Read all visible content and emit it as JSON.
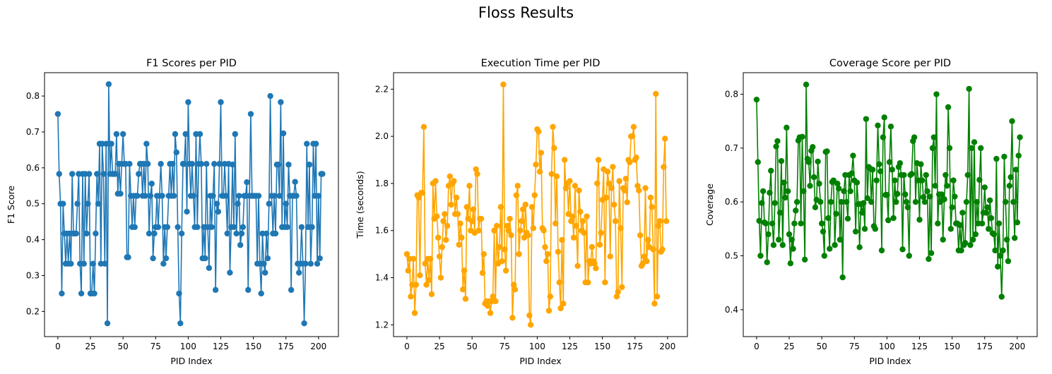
{
  "figure": {
    "suptitle": "Floss Results"
  },
  "chart_data": [
    {
      "type": "line",
      "title": "F1 Scores per PID",
      "xlabel": "PID Index",
      "ylabel": "F1 Score",
      "xlim": [
        -10.25,
        215.25
      ],
      "ylim": [
        0.13,
        0.865
      ],
      "xticks": [
        0,
        25,
        50,
        75,
        100,
        125,
        150,
        175,
        200
      ],
      "yticks": [
        0.2,
        0.3,
        0.4,
        0.5,
        0.6,
        0.7,
        0.8
      ],
      "ytick_labels": [
        "0.2",
        "0.3",
        "0.4",
        "0.5",
        "0.6",
        "0.7",
        "0.8"
      ],
      "color": "#1f77b4",
      "marker": "circle",
      "series": [
        {
          "values": [
            0.75,
            0.583,
            0.5,
            0.25,
            0.5,
            0.417,
            0.333,
            0.417,
            0.333,
            0.417,
            0.333,
            0.583,
            0.417,
            0.417,
            0.417,
            0.5,
            0.583,
            0.333,
            0.25,
            0.583,
            0.333,
            0.583,
            0.417,
            0.5,
            0.583,
            0.25,
            0.25,
            0.333,
            0.25,
            0.417,
            0.583,
            0.5,
            0.667,
            0.333,
            0.667,
            0.583,
            0.333,
            0.667,
            0.167,
            0.833,
            0.583,
            0.667,
            0.583,
            0.583,
            0.583,
            0.694,
            0.528,
            0.611,
            0.528,
            0.611,
            0.694,
            0.611,
            0.611,
            0.351,
            0.351,
            0.611,
            0.522,
            0.435,
            0.522,
            0.435,
            0.522,
            0.522,
            0.583,
            0.611,
            0.611,
            0.522,
            0.611,
            0.522,
            0.667,
            0.611,
            0.417,
            0.522,
            0.556,
            0.348,
            0.417,
            0.435,
            0.522,
            0.435,
            0.522,
            0.611,
            0.522,
            0.333,
            0.435,
            0.348,
            0.435,
            0.522,
            0.611,
            0.522,
            0.611,
            0.522,
            0.694,
            0.643,
            0.435,
            0.25,
            0.167,
            0.417,
            0.611,
            0.611,
            0.694,
            0.478,
            0.783,
            0.611,
            0.522,
            0.611,
            0.522,
            0.435,
            0.694,
            0.435,
            0.611,
            0.694,
            0.611,
            0.348,
            0.435,
            0.348,
            0.611,
            0.435,
            0.321,
            0.522,
            0.435,
            0.522,
            0.611,
            0.26,
            0.5,
            0.478,
            0.611,
            0.783,
            0.522,
            0.522,
            0.611,
            0.522,
            0.417,
            0.611,
            0.308,
            0.435,
            0.609,
            0.435,
            0.694,
            0.417,
            0.5,
            0.522,
            0.385,
            0.417,
            0.435,
            0.522,
            0.522,
            0.56,
            0.26,
            0.522,
            0.75,
            0.522,
            0.522,
            0.522,
            0.522,
            0.333,
            0.522,
            0.333,
            0.25,
            0.417,
            0.333,
            0.308,
            0.417,
            0.348,
            0.5,
            0.8,
            0.522,
            0.417,
            0.522,
            0.417,
            0.609,
            0.609,
            0.522,
            0.783,
            0.435,
            0.696,
            0.435,
            0.5,
            0.435,
            0.609,
            0.522,
            0.26,
            0.522,
            0.522,
            0.561,
            0.522,
            0.333,
            0.308,
            0.333,
            0.435,
            0.333,
            0.167,
            0.333,
            0.667,
            0.435,
            0.609,
            0.333,
            0.435,
            0.667,
            0.522,
            0.667,
            0.333,
            0.522,
            0.348,
            0.583,
            0.583
          ]
        }
      ]
    },
    {
      "type": "line",
      "title": "Execution Time per PID",
      "xlabel": "PID Index",
      "ylabel": "Time (seconds)",
      "xlim": [
        -10.25,
        215.25
      ],
      "ylim": [
        1.15,
        2.27
      ],
      "xticks": [
        0,
        25,
        50,
        75,
        100,
        125,
        150,
        175,
        200
      ],
      "yticks": [
        1.2,
        1.4,
        1.6,
        1.8,
        2.0,
        2.2
      ],
      "ytick_labels": [
        "1.2",
        "1.4",
        "1.6",
        "1.8",
        "2.0",
        "2.2"
      ],
      "color": "#ffa500",
      "marker": "circle",
      "series": [
        {
          "values": [
            1.5,
            1.43,
            1.48,
            1.32,
            1.37,
            1.48,
            1.25,
            1.37,
            1.75,
            1.74,
            1.41,
            1.76,
            1.76,
            2.04,
            1.46,
            1.37,
            1.48,
            1.39,
            1.48,
            1.33,
            1.8,
            1.65,
            1.81,
            1.66,
            1.57,
            1.49,
            1.4,
            1.53,
            1.64,
            1.67,
            1.56,
            1.62,
            1.79,
            1.83,
            1.71,
            1.8,
            1.81,
            1.67,
            1.74,
            1.67,
            1.54,
            1.63,
            1.57,
            1.35,
            1.43,
            1.31,
            1.7,
            1.65,
            1.79,
            1.6,
            1.64,
            1.69,
            1.59,
            1.86,
            1.84,
            1.6,
            1.65,
            1.65,
            1.42,
            1.5,
            1.29,
            1.3,
            1.28,
            1.3,
            1.25,
            1.3,
            1.32,
            1.6,
            1.3,
            1.62,
            1.46,
            1.53,
            1.7,
            1.47,
            2.22,
            1.52,
            1.43,
            1.62,
            1.6,
            1.65,
            1.58,
            1.23,
            1.37,
            1.35,
            1.75,
            1.79,
            1.5,
            1.6,
            1.64,
            1.69,
            1.57,
            1.71,
            1.59,
            1.58,
            1.24,
            1.2,
            1.7,
            1.61,
            1.75,
            1.88,
            2.03,
            2.02,
            1.85,
            1.93,
            1.61,
            1.6,
            1.53,
            1.47,
            1.5,
            1.26,
            1.32,
            1.84,
            2.04,
            1.95,
            1.63,
            1.83,
            1.51,
            1.38,
            1.27,
            1.56,
            1.29,
            1.9,
            1.78,
            1.8,
            1.67,
            1.81,
            1.64,
            1.66,
            1.57,
            1.79,
            1.62,
            1.45,
            1.77,
            1.68,
            1.6,
            1.64,
            1.59,
            1.38,
            1.66,
            1.38,
            1.47,
            1.46,
            1.53,
            1.47,
            1.46,
            1.44,
            1.8,
            1.9,
            1.54,
            1.59,
            1.73,
            1.86,
            1.38,
            1.74,
            1.85,
            1.8,
            1.49,
            1.78,
            1.87,
            1.71,
            1.64,
            1.32,
            1.34,
            1.81,
            1.61,
            1.36,
            1.78,
            1.77,
            1.82,
            1.72,
            1.9,
            1.89,
            2.0,
            2.0,
            2.04,
            1.9,
            1.91,
            1.79,
            1.77,
            1.58,
            1.45,
            1.46,
            1.49,
            1.78,
            1.47,
            1.56,
            1.53,
            1.74,
            1.7,
            1.52,
            1.29,
            2.18,
            1.32,
            1.62,
            1.64,
            1.51,
            1.52,
            1.87,
            1.99,
            1.64
          ]
        }
      ]
    },
    {
      "type": "line",
      "title": "Coverage Score per PID",
      "xlabel": "PID Index",
      "ylabel": "Coverage",
      "xlim": [
        -10.25,
        215.25
      ],
      "ylim": [
        0.35,
        0.84
      ],
      "xticks": [
        0,
        25,
        50,
        75,
        100,
        125,
        150,
        175,
        200
      ],
      "yticks": [
        0.4,
        0.5,
        0.6,
        0.7,
        0.8
      ],
      "ytick_labels": [
        "0.4",
        "0.5",
        "0.6",
        "0.7",
        "0.8"
      ],
      "color": "#008000",
      "marker": "circle",
      "series": [
        {
          "values": [
            0.79,
            0.674,
            0.565,
            0.5,
            0.598,
            0.62,
            0.562,
            0.56,
            0.488,
            0.54,
            0.617,
            0.658,
            0.56,
            0.52,
            0.598,
            0.703,
            0.713,
            0.53,
            0.58,
            0.676,
            0.52,
            0.636,
            0.608,
            0.738,
            0.62,
            0.54,
            0.486,
            0.53,
            0.513,
            0.56,
            0.584,
            0.6,
            0.714,
            0.72,
            0.56,
            0.721,
            0.62,
            0.493,
            0.818,
            0.68,
            0.674,
            0.63,
            0.695,
            0.702,
            0.646,
            0.59,
            0.604,
            0.675,
            0.634,
            0.6,
            0.56,
            0.545,
            0.5,
            0.693,
            0.694,
            0.57,
            0.513,
            0.6,
            0.637,
            0.64,
            0.52,
            0.578,
            0.634,
            0.625,
            0.53,
            0.6,
            0.46,
            0.62,
            0.65,
            0.6,
            0.569,
            0.65,
            0.62,
            0.653,
            0.686,
            0.64,
            0.545,
            0.636,
            0.596,
            0.516,
            0.596,
            0.58,
            0.598,
            0.55,
            0.754,
            0.607,
            0.665,
            0.662,
            0.6,
            0.66,
            0.555,
            0.55,
            0.64,
            0.742,
            0.67,
            0.657,
            0.51,
            0.72,
            0.757,
            0.613,
            0.613,
            0.566,
            0.674,
            0.74,
            0.66,
            0.57,
            0.64,
            0.6,
            0.615,
            0.665,
            0.672,
            0.65,
            0.512,
            0.65,
            0.614,
            0.6,
            0.59,
            0.5,
            0.65,
            0.652,
            0.713,
            0.72,
            0.6,
            0.672,
            0.64,
            0.567,
            0.67,
            0.64,
            0.609,
            0.6,
            0.65,
            0.62,
            0.494,
            0.61,
            0.505,
            0.7,
            0.72,
            0.63,
            0.8,
            0.56,
            0.614,
            0.6,
            0.614,
            0.53,
            0.605,
            0.65,
            0.63,
            0.776,
            0.7,
            0.55,
            0.59,
            0.64,
            0.61,
            0.56,
            0.56,
            0.51,
            0.557,
            0.51,
            0.58,
            0.52,
            0.524,
            0.6,
            0.65,
            0.81,
            0.52,
            0.7,
            0.53,
            0.711,
            0.54,
            0.6,
            0.56,
            0.641,
            0.7,
            0.56,
            0.58,
            0.627,
            0.58,
            0.59,
            0.55,
            0.603,
            0.57,
            0.542,
            0.54,
            0.51,
            0.68,
            0.48,
            0.56,
            0.5,
            0.424,
            0.51,
            0.684,
            0.6,
            0.53,
            0.49,
            0.63,
            0.646,
            0.75,
            0.6,
            0.533,
            0.66,
            0.562,
            0.686,
            0.72
          ]
        }
      ]
    }
  ]
}
